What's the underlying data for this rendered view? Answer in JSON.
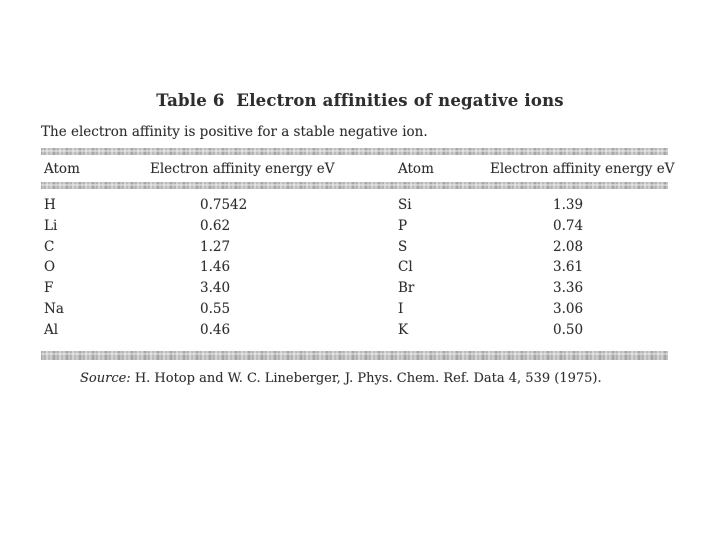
{
  "page": {
    "background_color": "#ffffff",
    "text_color": "#2e2e2e"
  },
  "table": {
    "title": "Table 6  Electron affinities of negative ions",
    "subtitle": "The electron affinity is positive for a stable negative ion.",
    "columns": [
      "Atom",
      "Electron affinity energy eV",
      "Atom",
      "Electron affinity energy eV"
    ],
    "rows": [
      {
        "atom1": "H",
        "ea1": "0.7542",
        "atom2": "Si",
        "ea2": "1.39"
      },
      {
        "atom1": "Li",
        "ea1": "0.62",
        "atom2": "P",
        "ea2": "0.74"
      },
      {
        "atom1": "C",
        "ea1": "1.27",
        "atom2": "S",
        "ea2": "2.08"
      },
      {
        "atom1": "O",
        "ea1": "1.46",
        "atom2": "Cl",
        "ea2": "3.61"
      },
      {
        "atom1": "F",
        "ea1": "3.40",
        "atom2": "Br",
        "ea2": "3.36"
      },
      {
        "atom1": "Na",
        "ea1": "0.55",
        "atom2": "I",
        "ea2": "3.06"
      },
      {
        "atom1": "Al",
        "ea1": "0.46",
        "atom2": "K",
        "ea2": "0.50"
      }
    ],
    "source_label": "Source:",
    "source_text": " H. Hotop and W. C. Lineberger, J. Phys. Chem. Ref. Data 4, 539 (1975)."
  }
}
